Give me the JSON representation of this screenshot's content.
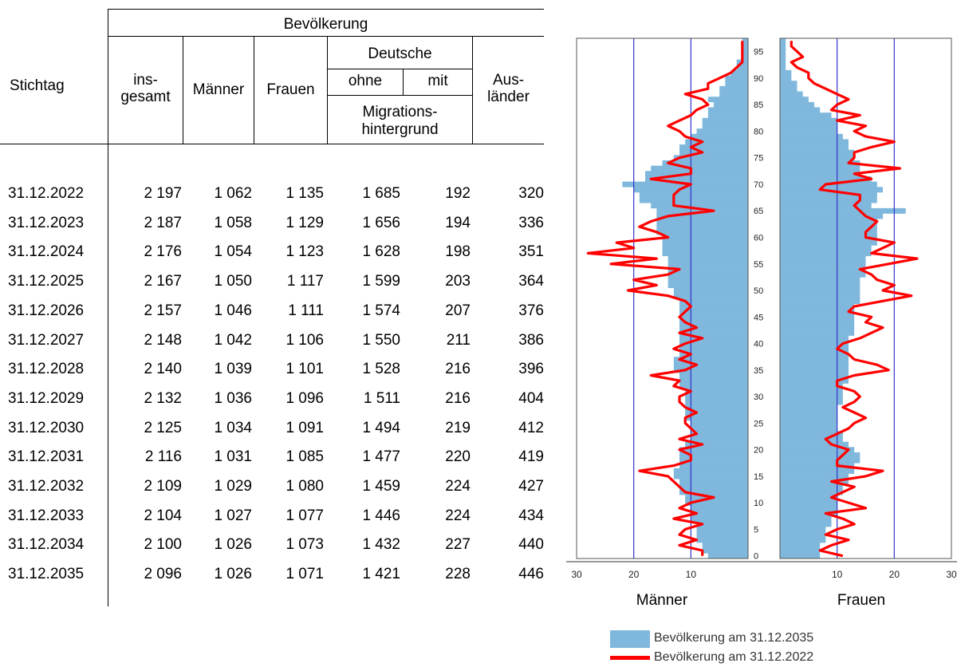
{
  "table": {
    "group_header": "Bevölkerung",
    "col_stichtag": "Stichtag",
    "col_insgesamt_1": "ins-",
    "col_insgesamt_2": "gesamt",
    "col_maenner": "Männer",
    "col_frauen": "Frauen",
    "col_deutsche": "Deutsche",
    "col_ohne": "ohne",
    "col_mit": "mit",
    "col_migration_1": "Migrations-",
    "col_migration_2": "hintergrund",
    "col_auslaender_1": "Aus-",
    "col_auslaender_2": "länder",
    "rows": [
      {
        "date": "31.12.2022",
        "insgesamt": "2 197",
        "maenner": "1 062",
        "frauen": "1 135",
        "ohne": "1 685",
        "mit": "192",
        "auslaender": "320"
      },
      {
        "date": "31.12.2023",
        "insgesamt": "2 187",
        "maenner": "1 058",
        "frauen": "1 129",
        "ohne": "1 656",
        "mit": "194",
        "auslaender": "336"
      },
      {
        "date": "31.12.2024",
        "insgesamt": "2 176",
        "maenner": "1 054",
        "frauen": "1 123",
        "ohne": "1 628",
        "mit": "198",
        "auslaender": "351"
      },
      {
        "date": "31.12.2025",
        "insgesamt": "2 167",
        "maenner": "1 050",
        "frauen": "1 117",
        "ohne": "1 599",
        "mit": "203",
        "auslaender": "364"
      },
      {
        "date": "31.12.2026",
        "insgesamt": "2 157",
        "maenner": "1 046",
        "frauen": "1 111",
        "ohne": "1 574",
        "mit": "207",
        "auslaender": "376"
      },
      {
        "date": "31.12.2027",
        "insgesamt": "2 148",
        "maenner": "1 042",
        "frauen": "1 106",
        "ohne": "1 550",
        "mit": "211",
        "auslaender": "386"
      },
      {
        "date": "31.12.2028",
        "insgesamt": "2 140",
        "maenner": "1 039",
        "frauen": "1 101",
        "ohne": "1 528",
        "mit": "216",
        "auslaender": "396"
      },
      {
        "date": "31.12.2029",
        "insgesamt": "2 132",
        "maenner": "1 036",
        "frauen": "1 096",
        "ohne": "1 511",
        "mit": "216",
        "auslaender": "404"
      },
      {
        "date": "31.12.2030",
        "insgesamt": "2 125",
        "maenner": "1 034",
        "frauen": "1 091",
        "ohne": "1 494",
        "mit": "219",
        "auslaender": "412"
      },
      {
        "date": "31.12.2031",
        "insgesamt": "2 116",
        "maenner": "1 031",
        "frauen": "1 085",
        "ohne": "1 477",
        "mit": "220",
        "auslaender": "419"
      },
      {
        "date": "31.12.2032",
        "insgesamt": "2 109",
        "maenner": "1 029",
        "frauen": "1 080",
        "ohne": "1 459",
        "mit": "224",
        "auslaender": "427"
      },
      {
        "date": "31.12.2033",
        "insgesamt": "2 104",
        "maenner": "1 027",
        "frauen": "1 077",
        "ohne": "1 446",
        "mit": "224",
        "auslaender": "434"
      },
      {
        "date": "31.12.2034",
        "insgesamt": "2 100",
        "maenner": "1 026",
        "frauen": "1 073",
        "ohne": "1 432",
        "mit": "227",
        "auslaender": "440"
      },
      {
        "date": "31.12.2035",
        "insgesamt": "2 096",
        "maenner": "1 026",
        "frauen": "1 071",
        "ohne": "1 421",
        "mit": "228",
        "auslaender": "446"
      }
    ]
  },
  "chart_data": {
    "type": "bar",
    "orientation": "horizontal",
    "colors": {
      "bars": "#7fb8dc",
      "line": "#ff0000",
      "grid": "#3333cc"
    },
    "age_ticks": [
      "0",
      "5",
      "10",
      "15",
      "20",
      "25",
      "30",
      "35",
      "40",
      "45",
      "50",
      "55",
      "60",
      "65",
      "70",
      "75",
      "80",
      "85",
      "90",
      "95"
    ],
    "ages": [
      0,
      1,
      2,
      3,
      4,
      5,
      6,
      7,
      8,
      9,
      10,
      11,
      12,
      13,
      14,
      15,
      16,
      17,
      18,
      19,
      20,
      21,
      22,
      23,
      24,
      25,
      26,
      27,
      28,
      29,
      30,
      31,
      32,
      33,
      34,
      35,
      36,
      37,
      38,
      39,
      40,
      41,
      42,
      43,
      44,
      45,
      46,
      47,
      48,
      49,
      50,
      51,
      52,
      53,
      54,
      55,
      56,
      57,
      58,
      59,
      60,
      61,
      62,
      63,
      64,
      65,
      66,
      67,
      68,
      69,
      70,
      71,
      72,
      73,
      74,
      75,
      76,
      77,
      78,
      79,
      80,
      81,
      82,
      83,
      84,
      85,
      86,
      87,
      88,
      89,
      90,
      91,
      92,
      93,
      94,
      95,
      96,
      97
    ],
    "x_ticks_left": [
      "30",
      "20",
      "10"
    ],
    "x_ticks_right": [
      "10",
      "20",
      "30"
    ],
    "xlim": [
      0,
      30
    ],
    "male_label": "Männer",
    "female_label": "Frauen",
    "legend": {
      "bars": "Bevölkerung am 31.12.2035",
      "line": "Bevölkerung am 31.12.2022"
    },
    "series": [
      {
        "name": "Bevölkerung am 31.12.2035",
        "part": "Männer",
        "values": [
          7,
          8,
          8,
          9,
          9,
          9,
          9,
          10,
          10,
          10,
          11,
          11,
          12,
          12,
          12,
          13,
          13,
          12,
          12,
          12,
          12,
          11,
          10,
          10,
          10,
          10,
          11,
          11,
          11,
          11,
          11,
          11,
          12,
          12,
          12,
          13,
          13,
          13,
          12,
          12,
          12,
          12,
          12,
          12,
          12,
          12,
          12,
          12,
          12,
          13,
          13,
          14,
          14,
          14,
          14,
          14,
          14,
          15,
          15,
          15,
          15,
          16,
          16,
          16,
          16,
          16,
          17,
          19,
          19,
          20,
          22,
          18,
          18,
          17,
          15,
          13,
          12,
          12,
          11,
          10,
          9,
          8,
          8,
          7,
          7,
          6,
          7,
          5,
          5,
          4,
          4,
          3,
          2,
          2,
          1,
          1,
          1,
          1
        ]
      },
      {
        "name": "Bevölkerung am 31.12.2022",
        "part": "Männer",
        "values": [
          8,
          8,
          12,
          9,
          12,
          11,
          8,
          13,
          9,
          12,
          10,
          6,
          11,
          12,
          13,
          14,
          19,
          13,
          10,
          10,
          12,
          8,
          12,
          9,
          10,
          11,
          11,
          9,
          11,
          12,
          12,
          10,
          13,
          12,
          17,
          11,
          9,
          12,
          10,
          13,
          11,
          8,
          12,
          9,
          11,
          12,
          11,
          10,
          11,
          14,
          21,
          16,
          20,
          14,
          12,
          24,
          16,
          28,
          20,
          23,
          14,
          16,
          19,
          17,
          14,
          6,
          13,
          13,
          13,
          12,
          10,
          17,
          10,
          10,
          14,
          12,
          8,
          10,
          8,
          11,
          12,
          14,
          12,
          10,
          9,
          7,
          8,
          11,
          7,
          7,
          5,
          3,
          2,
          1,
          1,
          1,
          1,
          1
        ]
      },
      {
        "name": "Bevölkerung am 31.12.2035",
        "part": "Frauen",
        "values": [
          7,
          7,
          7,
          8,
          8,
          8,
          9,
          9,
          10,
          10,
          10,
          10,
          11,
          11,
          12,
          12,
          13,
          13,
          14,
          14,
          13,
          12,
          11,
          11,
          10,
          10,
          10,
          10,
          10,
          11,
          11,
          11,
          11,
          12,
          12,
          12,
          12,
          12,
          12,
          12,
          12,
          12,
          13,
          13,
          13,
          13,
          13,
          13,
          14,
          14,
          14,
          14,
          14,
          15,
          15,
          15,
          15,
          16,
          16,
          17,
          17,
          17,
          17,
          17,
          18,
          22,
          16,
          17,
          17,
          18,
          17,
          16,
          14,
          14,
          14,
          13,
          13,
          12,
          12,
          11,
          10,
          10,
          10,
          9,
          7,
          6,
          5,
          4,
          3,
          3,
          2,
          2,
          1,
          1,
          1,
          1,
          1,
          1
        ]
      },
      {
        "name": "Bevölkerung am 31.12.2022",
        "part": "Frauen",
        "values": [
          11,
          7,
          9,
          12,
          8,
          10,
          13,
          11,
          8,
          15,
          12,
          9,
          11,
          13,
          9,
          15,
          18,
          10,
          10,
          11,
          12,
          9,
          8,
          10,
          12,
          13,
          15,
          13,
          11,
          13,
          14,
          13,
          10,
          10,
          13,
          19,
          17,
          13,
          12,
          10,
          11,
          14,
          16,
          18,
          15,
          16,
          12,
          13,
          18,
          23,
          18,
          20,
          17,
          16,
          14,
          19,
          24,
          16,
          18,
          20,
          15,
          15,
          16,
          17,
          15,
          14,
          13,
          14,
          14,
          7,
          8,
          16,
          13,
          21,
          12,
          13,
          13,
          16,
          20,
          15,
          13,
          15,
          10,
          14,
          9,
          10,
          12,
          10,
          8,
          6,
          5,
          5,
          3,
          2,
          4,
          3,
          2,
          2
        ]
      }
    ]
  }
}
